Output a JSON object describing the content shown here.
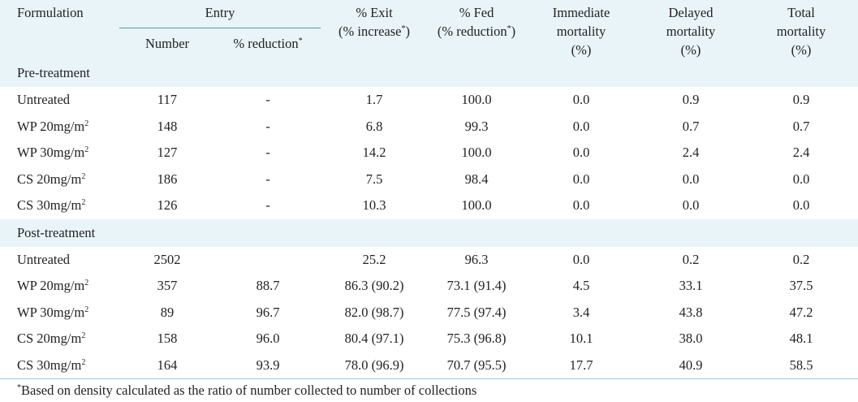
{
  "headers": {
    "formulation": "Formulation",
    "entry": "Entry",
    "entry_number": "Number",
    "entry_reduction": "% reduction",
    "entry_reduction_mark": "*",
    "exit_line1": "% Exit",
    "exit_line2_pre": "(% increase",
    "exit_line2_mark": "*",
    "exit_line2_post": ")",
    "fed_line1": "% Fed",
    "fed_line2_pre": "(% reduction",
    "fed_line2_mark": "*",
    "fed_line2_post": ")",
    "imm_line1": "Immediate",
    "imm_line2": "mortality",
    "imm_line3": "(%)",
    "del_line1": "Delayed",
    "del_line2": "mortality",
    "del_line3": "(%)",
    "tot_line1": "Total",
    "tot_line2": "mortality",
    "tot_line3": "(%)"
  },
  "sections": [
    {
      "title": "Pre-treatment",
      "rows": [
        {
          "name": "Untreated",
          "sup": "",
          "number": "117",
          "reduction": "-",
          "exit": "1.7",
          "fed": "100.0",
          "immediate": "0.0",
          "delayed": "0.9",
          "total": "0.9"
        },
        {
          "name": "WP 20mg/m",
          "sup": "2",
          "number": "148",
          "reduction": "-",
          "exit": "6.8",
          "fed": "99.3",
          "immediate": "0.0",
          "delayed": "0.7",
          "total": "0.7"
        },
        {
          "name": "WP 30mg/m",
          "sup": "2",
          "number": "127",
          "reduction": "-",
          "exit": "14.2",
          "fed": "100.0",
          "immediate": "0.0",
          "delayed": "2.4",
          "total": "2.4"
        },
        {
          "name": "CS 20mg/m",
          "sup": "2",
          "number": "186",
          "reduction": "-",
          "exit": "7.5",
          "fed": "98.4",
          "immediate": "0.0",
          "delayed": "0.0",
          "total": "0.0"
        },
        {
          "name": "CS 30mg/m",
          "sup": "2",
          "number": "126",
          "reduction": "-",
          "exit": "10.3",
          "fed": "100.0",
          "immediate": "0.0",
          "delayed": "0.0",
          "total": "0.0"
        }
      ]
    },
    {
      "title": "Post-treatment",
      "rows": [
        {
          "name": "Untreated",
          "sup": "",
          "number": "2502",
          "reduction": "",
          "exit": "25.2",
          "fed": "96.3",
          "immediate": "0.0",
          "delayed": "0.2",
          "total": "0.2"
        },
        {
          "name": "WP 20mg/m",
          "sup": "2",
          "number": "357",
          "reduction": "88.7",
          "exit": "86.3 (90.2)",
          "fed": "73.1 (91.4)",
          "immediate": "4.5",
          "delayed": "33.1",
          "total": "37.5"
        },
        {
          "name": "WP 30mg/m",
          "sup": "2",
          "number": "89",
          "reduction": "96.7",
          "exit": "82.0 (98.7)",
          "fed": "77.5 (97.4)",
          "immediate": "3.4",
          "delayed": "43.8",
          "total": "47.2"
        },
        {
          "name": "CS 20mg/m",
          "sup": "2",
          "number": "158",
          "reduction": "96.0",
          "exit": "80.4 (97.1)",
          "fed": "75.3 (96.8)",
          "immediate": "10.1",
          "delayed": "38.0",
          "total": "48.1"
        },
        {
          "name": "CS 30mg/m",
          "sup": "2",
          "number": "164",
          "reduction": "93.9",
          "exit": "78.0 (96.9)",
          "fed": "70.7 (95.5)",
          "immediate": "17.7",
          "delayed": "40.9",
          "total": "58.5"
        }
      ]
    }
  ],
  "footnote": {
    "mark": "*",
    "text": "Based on density calculated as the ratio of number collected to number of collections"
  }
}
